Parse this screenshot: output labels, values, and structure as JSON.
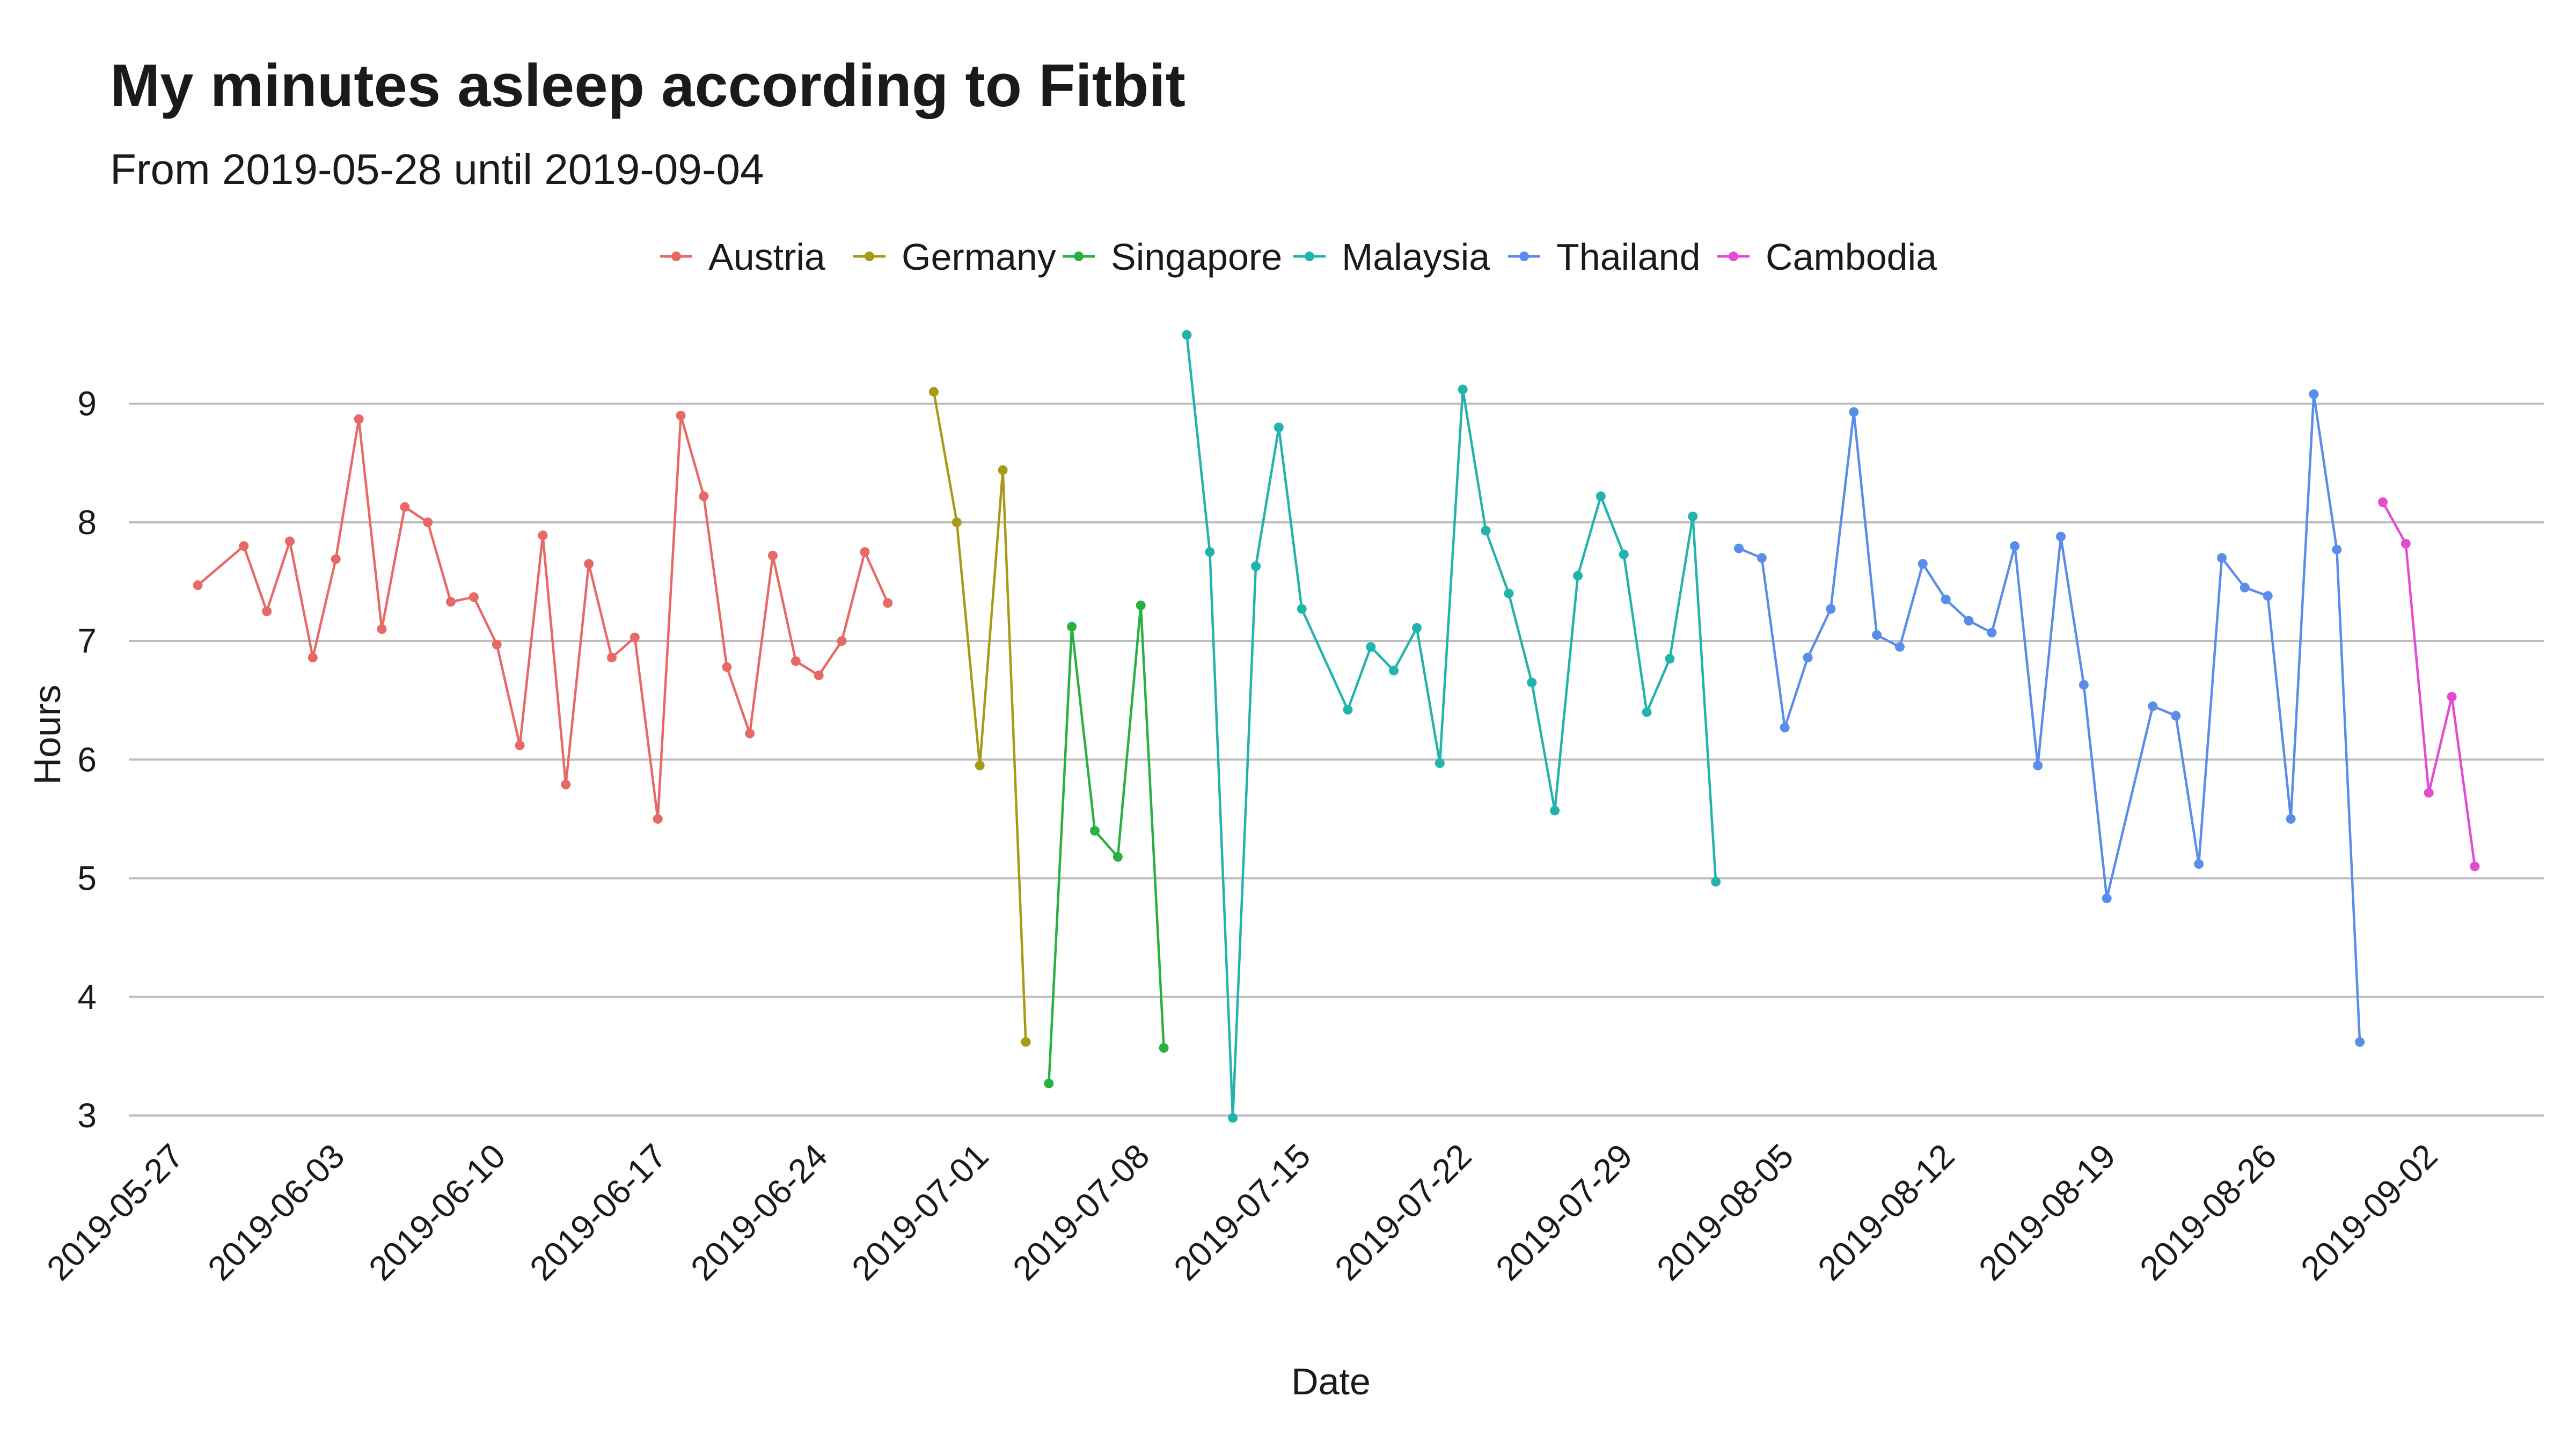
{
  "chart_data": {
    "type": "line",
    "title": "My minutes asleep according to Fitbit",
    "subtitle": "From 2019-05-28 until 2019-09-04",
    "xlabel": "Date",
    "ylabel": "Hours",
    "ylim": [
      3,
      9.6
    ],
    "xlim": [
      "2019-05-25",
      "2019-09-07"
    ],
    "y_ticks": [
      "3",
      "4",
      "5",
      "6",
      "7",
      "8",
      "9"
    ],
    "x_ticks": [
      "2019-05-27",
      "2019-06-03",
      "2019-06-10",
      "2019-06-17",
      "2019-06-24",
      "2019-07-01",
      "2019-07-08",
      "2019-07-15",
      "2019-07-22",
      "2019-07-29",
      "2019-08-05",
      "2019-08-12",
      "2019-08-19",
      "2019-08-26",
      "2019-09-02"
    ],
    "grid": "horizontal",
    "legend_position": "top",
    "series": [
      {
        "name": "Austria",
        "color": "#E76966",
        "points": [
          [
            "2019-05-28",
            7.47
          ],
          [
            "2019-05-30",
            7.8
          ],
          [
            "2019-05-31",
            7.25
          ],
          [
            "2019-06-01",
            7.84
          ],
          [
            "2019-06-02",
            6.86
          ],
          [
            "2019-06-03",
            7.69
          ],
          [
            "2019-06-04",
            8.87
          ],
          [
            "2019-06-05",
            7.1
          ],
          [
            "2019-06-06",
            8.13
          ],
          [
            "2019-06-07",
            8.0
          ],
          [
            "2019-06-08",
            7.33
          ],
          [
            "2019-06-09",
            7.37
          ],
          [
            "2019-06-10",
            6.97
          ],
          [
            "2019-06-11",
            6.12
          ],
          [
            "2019-06-12",
            7.89
          ],
          [
            "2019-06-13",
            5.79
          ],
          [
            "2019-06-14",
            7.65
          ],
          [
            "2019-06-15",
            6.86
          ],
          [
            "2019-06-16",
            7.03
          ],
          [
            "2019-06-17",
            5.5
          ],
          [
            "2019-06-18",
            8.9
          ],
          [
            "2019-06-19",
            8.22
          ],
          [
            "2019-06-20",
            6.78
          ],
          [
            "2019-06-21",
            6.22
          ],
          [
            "2019-06-22",
            7.72
          ],
          [
            "2019-06-23",
            6.83
          ],
          [
            "2019-06-24",
            6.71
          ],
          [
            "2019-06-25",
            7.0
          ],
          [
            "2019-06-26",
            7.75
          ],
          [
            "2019-06-27",
            7.32
          ]
        ]
      },
      {
        "name": "Germany",
        "color": "#A89A16",
        "points": [
          [
            "2019-06-29",
            9.1
          ],
          [
            "2019-06-30",
            8.0
          ],
          [
            "2019-07-01",
            5.95
          ],
          [
            "2019-07-02",
            8.44
          ],
          [
            "2019-07-03",
            3.62
          ]
        ]
      },
      {
        "name": "Singapore",
        "color": "#28B143",
        "points": [
          [
            "2019-07-04",
            3.27
          ],
          [
            "2019-07-05",
            7.12
          ],
          [
            "2019-07-06",
            5.4
          ],
          [
            "2019-07-07",
            5.18
          ],
          [
            "2019-07-08",
            7.3
          ],
          [
            "2019-07-09",
            3.57
          ]
        ]
      },
      {
        "name": "Malaysia",
        "color": "#22B3AD",
        "points": [
          [
            "2019-07-10",
            9.58
          ],
          [
            "2019-07-11",
            7.75
          ],
          [
            "2019-07-12",
            2.98
          ],
          [
            "2019-07-13",
            7.63
          ],
          [
            "2019-07-14",
            8.8
          ],
          [
            "2019-07-15",
            7.27
          ],
          [
            "2019-07-17",
            6.42
          ],
          [
            "2019-07-18",
            6.95
          ],
          [
            "2019-07-19",
            6.75
          ],
          [
            "2019-07-20",
            7.11
          ],
          [
            "2019-07-21",
            5.97
          ],
          [
            "2019-07-22",
            9.12
          ],
          [
            "2019-07-23",
            7.93
          ],
          [
            "2019-07-24",
            7.4
          ],
          [
            "2019-07-25",
            6.65
          ],
          [
            "2019-07-26",
            5.57
          ],
          [
            "2019-07-27",
            7.55
          ],
          [
            "2019-07-28",
            8.22
          ],
          [
            "2019-07-29",
            7.73
          ],
          [
            "2019-07-30",
            6.4
          ],
          [
            "2019-07-31",
            6.85
          ],
          [
            "2019-08-01",
            8.05
          ],
          [
            "2019-08-02",
            4.97
          ]
        ]
      },
      {
        "name": "Thailand",
        "color": "#5A8DEA",
        "points": [
          [
            "2019-08-03",
            7.78
          ],
          [
            "2019-08-04",
            7.7
          ],
          [
            "2019-08-05",
            6.27
          ],
          [
            "2019-08-06",
            6.86
          ],
          [
            "2019-08-07",
            7.27
          ],
          [
            "2019-08-08",
            8.93
          ],
          [
            "2019-08-09",
            7.05
          ],
          [
            "2019-08-10",
            6.95
          ],
          [
            "2019-08-11",
            7.65
          ],
          [
            "2019-08-12",
            7.35
          ],
          [
            "2019-08-13",
            7.17
          ],
          [
            "2019-08-14",
            7.07
          ],
          [
            "2019-08-15",
            7.8
          ],
          [
            "2019-08-16",
            5.95
          ],
          [
            "2019-08-17",
            7.88
          ],
          [
            "2019-08-18",
            6.63
          ],
          [
            "2019-08-19",
            4.83
          ],
          [
            "2019-08-21",
            6.45
          ],
          [
            "2019-08-22",
            6.37
          ],
          [
            "2019-08-23",
            5.12
          ],
          [
            "2019-08-24",
            7.7
          ],
          [
            "2019-08-25",
            7.45
          ],
          [
            "2019-08-26",
            7.38
          ],
          [
            "2019-08-27",
            5.5
          ],
          [
            "2019-08-28",
            9.08
          ],
          [
            "2019-08-29",
            7.77
          ],
          [
            "2019-08-30",
            3.62
          ]
        ]
      },
      {
        "name": "Cambodia",
        "color": "#E34BD1",
        "points": [
          [
            "2019-08-31",
            8.17
          ],
          [
            "2019-09-01",
            7.82
          ],
          [
            "2019-09-02",
            5.72
          ],
          [
            "2019-09-03",
            6.53
          ],
          [
            "2019-09-04",
            5.1
          ]
        ]
      }
    ]
  }
}
